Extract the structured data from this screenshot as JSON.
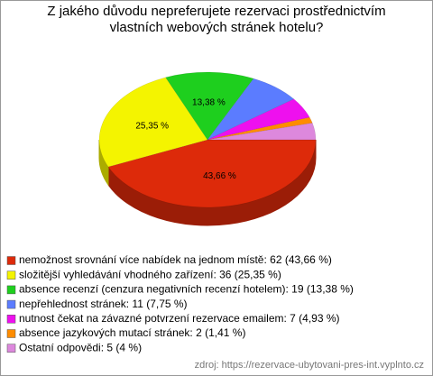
{
  "chart_data": {
    "type": "pie",
    "title": "Z jakého důvodu nepreferujete rezervaci prostřednictvím vlastních webových stránek hotelu?",
    "categories": [
      "nemožnost srovnání více nabídek na jednom místě: 62 (43,66 %)",
      "složitější vyhledávání vhodného zařízení: 36 (25,35 %)",
      "absence recenzí (cenzura negativních recenzí hotelem): 19 (13,38 %)",
      "nepřehlednost stránek: 11 (7,75 %)",
      "nutnost čekat na závazné potvrzení rezervace emailem: 7 (4,93 %)",
      "absence jazykových mutací stránek: 2 (1,41 %)",
      "Ostatní odpovědi: 5 (4 %)"
    ],
    "values": [
      43.66,
      25.35,
      13.38,
      7.75,
      4.93,
      1.41,
      4
    ],
    "value_labels": [
      "43,66 %",
      "25,35 %",
      "13,38 %",
      null,
      null,
      null,
      null
    ],
    "colors": [
      "#dd2a0a",
      "#f4f400",
      "#1ecf1e",
      "#5b7cff",
      "#ee10ee",
      "#ff8c00",
      "#dd88dd"
    ],
    "source": "zdroj: https://rezervace-ubytovani-pres-int.vyplnto.cz"
  }
}
